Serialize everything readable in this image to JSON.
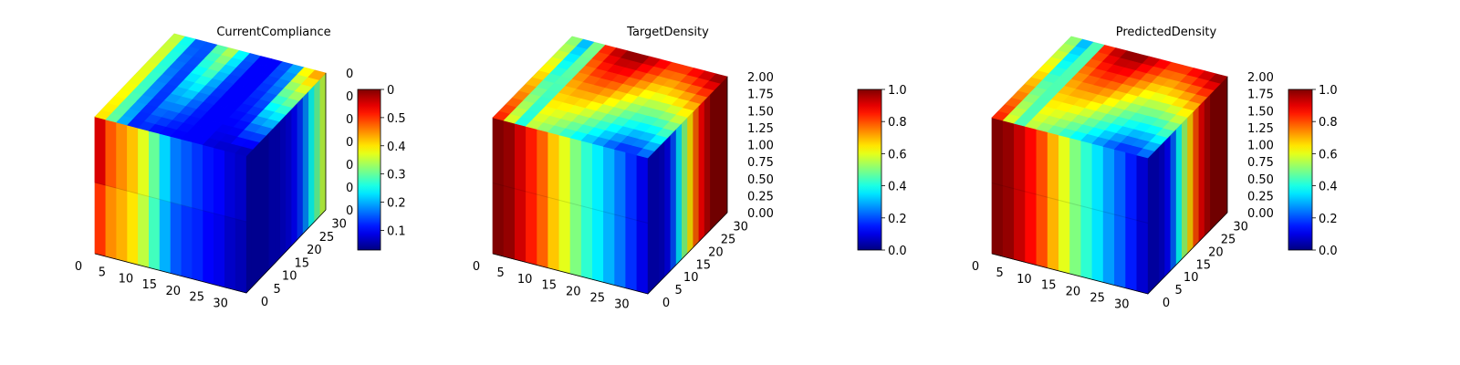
{
  "colors": {
    "background": "#ffffff",
    "pane_light": "#f2f2f2",
    "pane_mid": "#ebebeb",
    "grid": "#d0d0d0",
    "colormap": "jet"
  },
  "chart_data": [
    {
      "type": "heatmap",
      "render": "3d-voxel-cube",
      "title": "CurrentCompliance",
      "x_ticks": [
        "0",
        "5",
        "10",
        "15",
        "20",
        "25",
        "30"
      ],
      "y_ticks": [
        "0",
        "5",
        "10",
        "15",
        "20",
        "25",
        "30"
      ],
      "z_ticks": [
        "0",
        "0",
        "0",
        "0",
        "0",
        "0",
        "0"
      ],
      "xlim": [
        0,
        32
      ],
      "ylim": [
        0,
        32
      ],
      "zlim": [
        0,
        2
      ],
      "colorbar": {
        "range": [
          0.03,
          0.6
        ],
        "ticks": [
          "0.1",
          "0.2",
          "0.3",
          "0.4",
          "0.5",
          "0"
        ]
      },
      "faces": {
        "front_x_profile": [
          0.5,
          0.45,
          0.43,
          0.4,
          0.35,
          0.28,
          0.2,
          0.15,
          0.13,
          0.12,
          0.1,
          0.09,
          0.07,
          0.06
        ],
        "front_top_band_x_profile": [
          0.55,
          0.48,
          0.45,
          0.42,
          0.37,
          0.3,
          0.22,
          0.17,
          0.15,
          0.13,
          0.11,
          0.1,
          0.08,
          0.07
        ],
        "right_y_profile": [
          0.05,
          0.05,
          0.05,
          0.05,
          0.06,
          0.06,
          0.07,
          0.08,
          0.1,
          0.13,
          0.18,
          0.25,
          0.3,
          0.35
        ],
        "top_front_edge_profile": [
          0.4,
          0.3,
          0.2,
          0.12,
          0.12,
          0.1,
          0.1,
          0.1,
          0.1,
          0.1,
          0.08,
          0.07,
          0.06,
          0.05
        ],
        "top_back_edge_profile": [
          0.35,
          0.25,
          0.15,
          0.15,
          0.3,
          0.35,
          0.25,
          0.15,
          0.1,
          0.1,
          0.15,
          0.2,
          0.4,
          0.45
        ]
      }
    },
    {
      "type": "heatmap",
      "render": "3d-voxel-cube",
      "title": "TargetDensity",
      "x_ticks": [
        "0",
        "5",
        "10",
        "15",
        "20",
        "25",
        "30"
      ],
      "y_ticks": [
        "0",
        "5",
        "10",
        "15",
        "20",
        "25",
        "30"
      ],
      "z_ticks": [
        "0.00",
        "0.25",
        "0.50",
        "0.75",
        "1.00",
        "1.25",
        "1.50",
        "1.75",
        "2.00"
      ],
      "xlim": [
        0,
        32
      ],
      "ylim": [
        0,
        32
      ],
      "zlim": [
        0,
        2
      ],
      "colorbar": {
        "range": [
          0,
          1
        ],
        "ticks": [
          "0.0",
          "0.2",
          "0.4",
          "0.6",
          "0.8",
          "1.0"
        ]
      },
      "faces": {
        "front_x_profile": [
          1.0,
          0.98,
          0.92,
          0.85,
          0.78,
          0.68,
          0.6,
          0.5,
          0.42,
          0.36,
          0.3,
          0.24,
          0.17,
          0.1
        ],
        "right_y_profile": [
          0.05,
          0.05,
          0.06,
          0.1,
          0.2,
          0.35,
          0.5,
          0.65,
          0.78,
          0.88,
          0.95,
          1.0,
          1.0,
          1.0
        ],
        "top_front_edge_profile": [
          0.85,
          0.6,
          0.4,
          0.55,
          0.5,
          0.45,
          0.4,
          0.35,
          0.3,
          0.25,
          0.2,
          0.15,
          0.15,
          0.2
        ],
        "top_back_edge_profile": [
          0.5,
          0.3,
          0.5,
          0.85,
          0.95,
          1.0,
          1.0,
          0.95,
          0.9,
          0.85,
          0.85,
          0.9,
          0.95,
          1.0
        ]
      }
    },
    {
      "type": "heatmap",
      "render": "3d-voxel-cube",
      "title": "PredictedDensity",
      "x_ticks": [
        "0",
        "5",
        "10",
        "15",
        "20",
        "25",
        "30"
      ],
      "y_ticks": [
        "0",
        "5",
        "10",
        "15",
        "20",
        "25",
        "30"
      ],
      "z_ticks": [
        "0.00",
        "0.25",
        "0.50",
        "0.75",
        "1.00",
        "1.25",
        "1.50",
        "1.75",
        "2.00"
      ],
      "xlim": [
        0,
        32
      ],
      "ylim": [
        0,
        32
      ],
      "zlim": [
        0,
        2
      ],
      "colorbar": {
        "range": [
          0,
          1
        ],
        "ticks": [
          "0.0",
          "0.2",
          "0.4",
          "0.6",
          "0.8",
          "1.0"
        ]
      },
      "faces": {
        "front_x_profile": [
          1.0,
          0.98,
          0.93,
          0.87,
          0.8,
          0.7,
          0.6,
          0.5,
          0.42,
          0.35,
          0.28,
          0.22,
          0.15,
          0.08
        ],
        "right_y_profile": [
          0.05,
          0.05,
          0.07,
          0.12,
          0.22,
          0.38,
          0.52,
          0.67,
          0.8,
          0.9,
          0.96,
          1.0,
          1.0,
          1.0
        ],
        "top_front_edge_profile": [
          0.85,
          0.6,
          0.45,
          0.55,
          0.5,
          0.45,
          0.4,
          0.35,
          0.3,
          0.25,
          0.2,
          0.15,
          0.15,
          0.2
        ],
        "top_back_edge_profile": [
          0.5,
          0.3,
          0.45,
          0.85,
          0.95,
          1.0,
          1.0,
          0.95,
          0.9,
          0.85,
          0.85,
          0.9,
          0.95,
          1.0
        ]
      }
    }
  ]
}
